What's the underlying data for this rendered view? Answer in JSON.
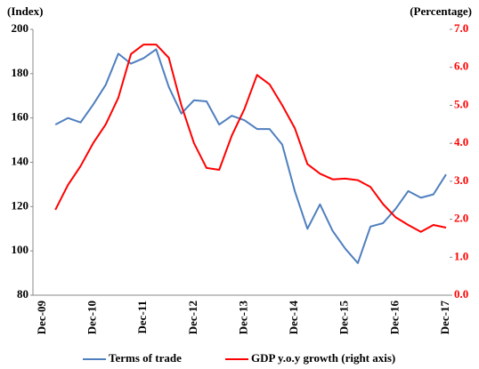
{
  "chart_data": {
    "type": "line",
    "y_label": "(Index)",
    "y2_label": "(Percentage)",
    "categories": [
      "Dec-09",
      null,
      null,
      null,
      "Dec-10",
      null,
      null,
      null,
      "Dec-11",
      null,
      null,
      null,
      "Dec-12",
      null,
      null,
      null,
      "Dec-13",
      null,
      null,
      null,
      "Dec-14",
      null,
      null,
      null,
      "Dec-15",
      null,
      null,
      null,
      "Dec-16",
      null,
      null,
      null,
      "Dec-17"
    ],
    "series": [
      {
        "name": "Terms of trade",
        "color": "#4f7fbf",
        "axis": "y",
        "values": [
          null,
          157,
          160,
          158,
          166,
          175,
          189,
          184.5,
          187,
          191,
          174,
          162,
          168,
          167.5,
          157,
          161,
          159,
          155,
          155,
          148,
          127,
          110,
          121,
          109,
          101,
          94.5,
          111,
          112.5,
          119,
          127,
          124,
          125.5,
          134.5
        ]
      },
      {
        "name": "GDP y.o.y growth (right axis)",
        "color": "#ff0000",
        "axis": "y2",
        "values": [
          null,
          2.25,
          2.9,
          3.4,
          4.0,
          4.5,
          5.2,
          6.35,
          6.6,
          6.6,
          6.25,
          5.0,
          4.0,
          3.35,
          3.3,
          4.2,
          4.9,
          5.8,
          5.55,
          5.0,
          4.4,
          3.45,
          3.2,
          3.05,
          3.07,
          3.03,
          2.85,
          2.4,
          2.05,
          1.85,
          1.67,
          1.85,
          1.78
        ]
      }
    ],
    "ylim": [
      80,
      200
    ],
    "yticks": [
      80,
      100,
      120,
      140,
      160,
      180,
      200
    ],
    "y2lim": [
      0,
      7
    ],
    "y2ticks": [
      {
        "value": 0,
        "label": "0.0"
      },
      {
        "value": 1,
        "label": "1.0"
      },
      {
        "value": 2,
        "label": "2.0"
      },
      {
        "value": 3,
        "label": "3.0"
      },
      {
        "value": 4,
        "label": "4.0"
      },
      {
        "value": 5,
        "label": "5.0"
      },
      {
        "value": 6,
        "label": "6.0"
      },
      {
        "value": 7,
        "label": "7.0"
      }
    ],
    "legend": "bottom"
  }
}
